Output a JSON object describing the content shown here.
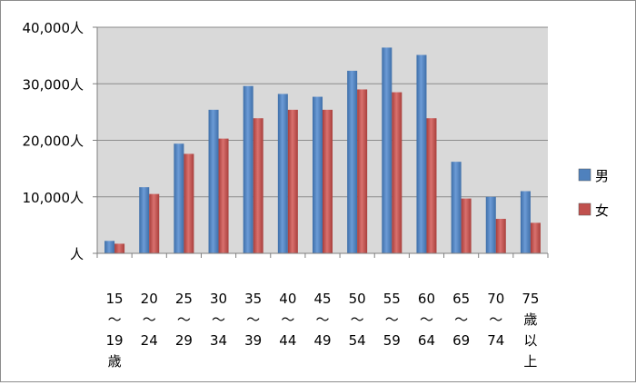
{
  "chart_data": {
    "type": "bar",
    "title": "",
    "xlabel": "",
    "ylabel": "",
    "ylim": [
      0,
      40000
    ],
    "y_ticks": [
      "人",
      "10,000人",
      "20,000人",
      "30,000人",
      "40,000人"
    ],
    "y_tick_values": [
      0,
      10000,
      20000,
      30000,
      40000
    ],
    "grid": true,
    "legend_position": "right",
    "categories": [
      [
        "15",
        "～",
        "19",
        "歳"
      ],
      [
        "20",
        "～",
        "24"
      ],
      [
        "25",
        "～",
        "29"
      ],
      [
        "30",
        "～",
        "34"
      ],
      [
        "35",
        "～",
        "39"
      ],
      [
        "40",
        "～",
        "44"
      ],
      [
        "45",
        "～",
        "49"
      ],
      [
        "50",
        "～",
        "54"
      ],
      [
        "55",
        "～",
        "59"
      ],
      [
        "60",
        "～",
        "64"
      ],
      [
        "65",
        "～",
        "69"
      ],
      [
        "70",
        "～",
        "74"
      ],
      [
        "75",
        "歳",
        "以",
        "上"
      ]
    ],
    "series": [
      {
        "name": "男",
        "color": "#4f81bd",
        "values": [
          2200,
          11700,
          19400,
          25400,
          29600,
          28200,
          27700,
          32300,
          36400,
          35100,
          16200,
          10000,
          11000
        ]
      },
      {
        "name": "女",
        "color": "#c0504d",
        "values": [
          1700,
          10500,
          17600,
          20300,
          23900,
          25400,
          25400,
          29000,
          28500,
          23900,
          9700,
          6100,
          5400
        ]
      }
    ]
  }
}
